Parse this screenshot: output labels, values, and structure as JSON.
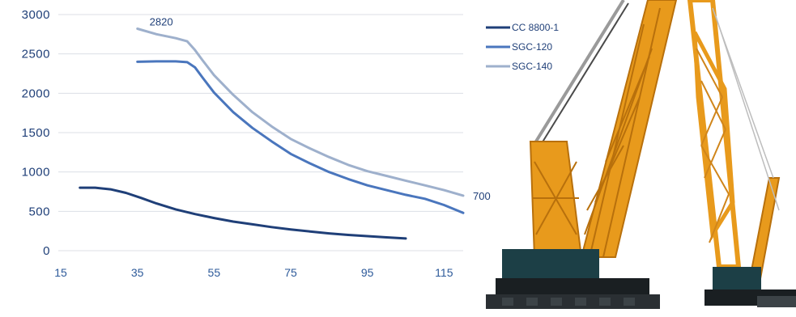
{
  "chart_data": {
    "type": "line",
    "title": "",
    "xlabel": "",
    "ylabel": "",
    "xlim": [
      15,
      120
    ],
    "ylim": [
      0,
      3000
    ],
    "x_ticks": [
      15,
      35,
      55,
      75,
      95,
      115
    ],
    "y_ticks": [
      0,
      500,
      1000,
      1500,
      2000,
      2500,
      3000
    ],
    "grid": "horizontal",
    "legend_position": "right",
    "series": [
      {
        "name": "CC 8800-1",
        "color": "#1f3f78",
        "points": [
          [
            20,
            800
          ],
          [
            24,
            800
          ],
          [
            28,
            780
          ],
          [
            32,
            735
          ],
          [
            36,
            670
          ],
          [
            40,
            600
          ],
          [
            45,
            525
          ],
          [
            50,
            465
          ],
          [
            55,
            415
          ],
          [
            60,
            370
          ],
          [
            65,
            335
          ],
          [
            70,
            300
          ],
          [
            75,
            270
          ],
          [
            80,
            245
          ],
          [
            85,
            220
          ],
          [
            90,
            200
          ],
          [
            95,
            185
          ],
          [
            100,
            170
          ],
          [
            105,
            155
          ]
        ]
      },
      {
        "name": "SGC-120",
        "color": "#4a76bd",
        "points": [
          [
            35,
            2400
          ],
          [
            40,
            2405
          ],
          [
            45,
            2405
          ],
          [
            48,
            2395
          ],
          [
            50,
            2330
          ],
          [
            52,
            2200
          ],
          [
            55,
            2010
          ],
          [
            60,
            1760
          ],
          [
            65,
            1560
          ],
          [
            70,
            1390
          ],
          [
            75,
            1230
          ],
          [
            80,
            1110
          ],
          [
            85,
            1000
          ],
          [
            90,
            910
          ],
          [
            95,
            830
          ],
          [
            100,
            770
          ],
          [
            105,
            710
          ],
          [
            110,
            660
          ],
          [
            115,
            580
          ],
          [
            120,
            480
          ]
        ]
      },
      {
        "name": "SGC-140",
        "color": "#9eb0cc",
        "points": [
          [
            35,
            2820
          ],
          [
            40,
            2750
          ],
          [
            45,
            2700
          ],
          [
            48,
            2660
          ],
          [
            50,
            2550
          ],
          [
            52,
            2420
          ],
          [
            55,
            2230
          ],
          [
            60,
            1980
          ],
          [
            65,
            1760
          ],
          [
            70,
            1580
          ],
          [
            75,
            1420
          ],
          [
            80,
            1300
          ],
          [
            85,
            1190
          ],
          [
            90,
            1090
          ],
          [
            95,
            1010
          ],
          [
            100,
            950
          ],
          [
            105,
            890
          ],
          [
            110,
            830
          ],
          [
            115,
            770
          ],
          [
            120,
            700
          ]
        ]
      }
    ],
    "annotations": [
      {
        "text": "2820",
        "x": 35,
        "y": 2820
      },
      {
        "text": "700",
        "x": 120,
        "y": 700
      }
    ]
  },
  "photo": {
    "subject": "crawler-crane-illustration",
    "colors": {
      "boom": "#e89a1c",
      "boom_dark": "#c4740e",
      "body": "#1c3f46",
      "track": "#1a1f22",
      "cable": "#8c8c8c"
    }
  }
}
